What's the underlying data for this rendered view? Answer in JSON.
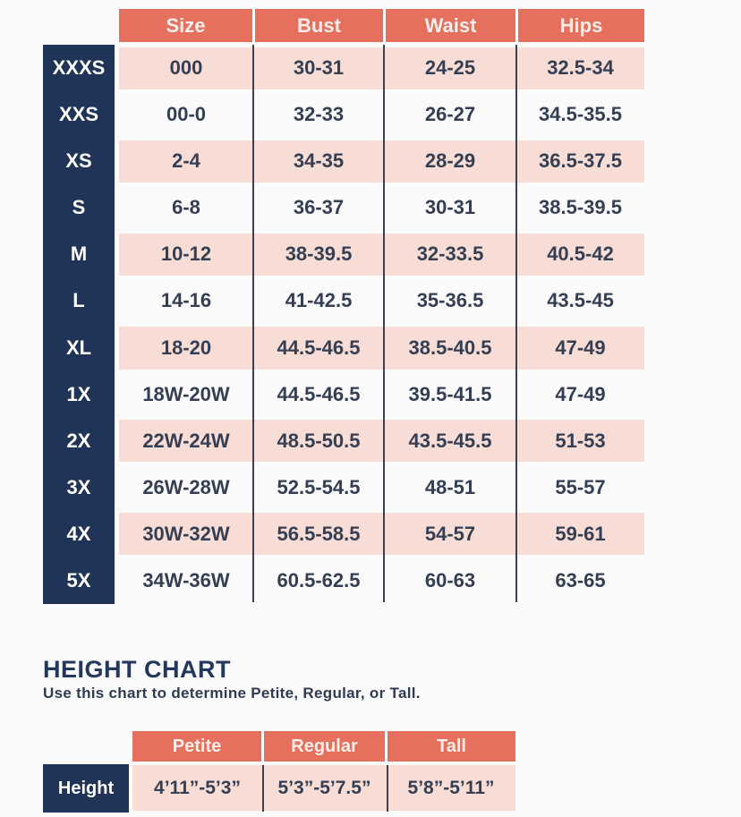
{
  "size_chart": {
    "columns": [
      "Size",
      "Bust",
      "Waist",
      "Hips"
    ],
    "rows": [
      {
        "label": "XXXS",
        "size": "000",
        "bust": "30-31",
        "waist": "24-25",
        "hips": "32.5-34"
      },
      {
        "label": "XXS",
        "size": "00-0",
        "bust": "32-33",
        "waist": "26-27",
        "hips": "34.5-35.5"
      },
      {
        "label": "XS",
        "size": "2-4",
        "bust": "34-35",
        "waist": "28-29",
        "hips": "36.5-37.5"
      },
      {
        "label": "S",
        "size": "6-8",
        "bust": "36-37",
        "waist": "30-31",
        "hips": "38.5-39.5"
      },
      {
        "label": "M",
        "size": "10-12",
        "bust": "38-39.5",
        "waist": "32-33.5",
        "hips": "40.5-42"
      },
      {
        "label": "L",
        "size": "14-16",
        "bust": "41-42.5",
        "waist": "35-36.5",
        "hips": "43.5-45"
      },
      {
        "label": "XL",
        "size": "18-20",
        "bust": "44.5-46.5",
        "waist": "38.5-40.5",
        "hips": "47-49"
      },
      {
        "label": "1X",
        "size": "18W-20W",
        "bust": "44.5-46.5",
        "waist": "39.5-41.5",
        "hips": "47-49"
      },
      {
        "label": "2X",
        "size": "22W-24W",
        "bust": "48.5-50.5",
        "waist": "43.5-45.5",
        "hips": "51-53"
      },
      {
        "label": "3X",
        "size": "26W-28W",
        "bust": "52.5-54.5",
        "waist": "48-51",
        "hips": "55-57"
      },
      {
        "label": "4X",
        "size": "30W-32W",
        "bust": "56.5-58.5",
        "waist": "54-57",
        "hips": "59-61"
      },
      {
        "label": "5X",
        "size": "34W-36W",
        "bust": "60.5-62.5",
        "waist": "60-63",
        "hips": "63-65"
      }
    ]
  },
  "height_chart": {
    "title": "HEIGHT CHART",
    "subtitle": "Use this chart to determine Petite, Regular, or Tall.",
    "columns": [
      "Petite",
      "Regular",
      "Tall"
    ],
    "row_label": "Height",
    "values": [
      "4’11”-5’3”",
      "5’3”-5’7.5”",
      "5’8”-5’11”"
    ]
  },
  "colors": {
    "coral": "#e5705e",
    "pink": "#f7ddd5",
    "navy": "#203457",
    "text": "#353f54"
  }
}
